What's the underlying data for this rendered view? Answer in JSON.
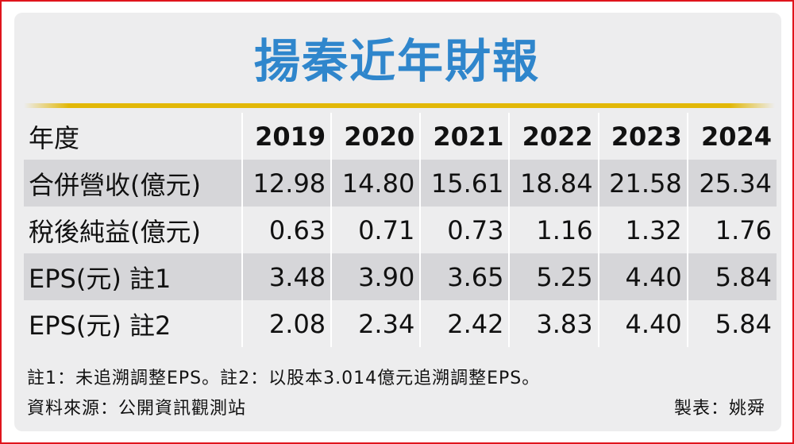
{
  "title": "揚秦近年財報",
  "table": {
    "header_label": "年度",
    "years": [
      "2019",
      "2020",
      "2021",
      "2022",
      "2023",
      "2024"
    ],
    "rows": [
      {
        "label": "合併營收(億元)",
        "values": [
          "12.98",
          "14.80",
          "15.61",
          "18.84",
          "21.58",
          "25.34"
        ]
      },
      {
        "label": "稅後純益(億元)",
        "values": [
          "0.63",
          "0.71",
          "0.73",
          "1.16",
          "1.32",
          "1.76"
        ]
      },
      {
        "label": "EPS(元) 註1",
        "values": [
          "3.48",
          "3.90",
          "3.65",
          "5.25",
          "4.40",
          "5.84"
        ]
      },
      {
        "label": "EPS(元) 註2",
        "values": [
          "2.08",
          "2.34",
          "2.42",
          "3.83",
          "4.40",
          "5.84"
        ]
      }
    ]
  },
  "footnote": "註1：未追溯調整EPS。註2：以股本3.014億元追溯調整EPS。",
  "source": "資料來源：公開資訊觀測站",
  "maker": "製表：姚舜",
  "colors": {
    "border": "#e0141c",
    "title": "#2f86cc",
    "rule": "#e2b808",
    "panel": "#ededee",
    "row_alt": "#d6d6d9"
  }
}
